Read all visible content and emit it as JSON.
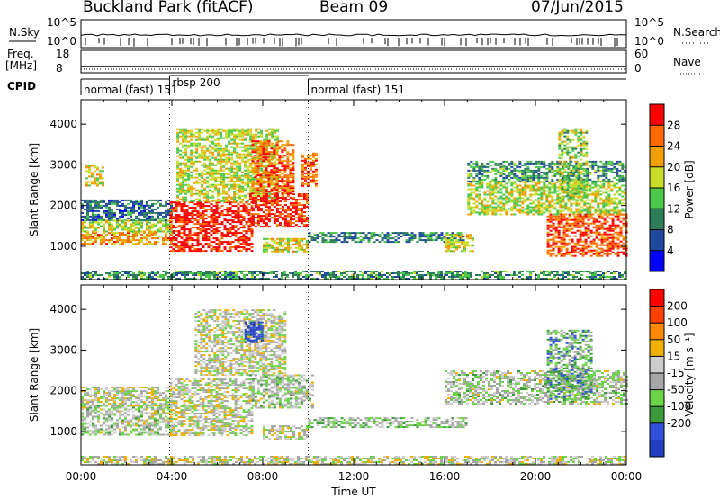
{
  "header": {
    "station": "Buckland Park (fitACF)",
    "beam": "Beam 09",
    "date": "07/Jun/2015"
  },
  "status_panels": {
    "nsky_label": "N.Sky",
    "nsky_ticks": [
      "10^5",
      "10^0"
    ],
    "nsearch_label": "N.Search",
    "nsearch_ticks": [
      "10^5",
      "10^0"
    ],
    "freq_label": "Freq.",
    "freq_unit": "[MHz]",
    "freq_ticks": [
      "18",
      "8"
    ],
    "nave_label": "Nave",
    "nave_ticks": [
      "60",
      "0"
    ],
    "cpid_label": "CPID",
    "cpid_segments": [
      {
        "label": "normal (fast) 151",
        "start": 0.0,
        "end": 3.9
      },
      {
        "label": "rbsp 200",
        "start": 3.9,
        "end": 10.0
      },
      {
        "label": "normal (fast) 151",
        "start": 10.0,
        "end": 24.0
      }
    ]
  },
  "chart_data": [
    {
      "type": "heatmap",
      "name": "Power",
      "xlabel": "",
      "ylabel": "Slant Range [km]",
      "xlim": [
        0,
        24
      ],
      "ylim": [
        180,
        4600
      ],
      "yticks": [
        1000,
        2000,
        3000,
        4000
      ],
      "colorbar_label": "Power [dB]",
      "colorbar_ticks": [
        "4",
        "8",
        "12",
        "16",
        "20",
        "24",
        "28"
      ],
      "colorbar_colors": [
        "#0000ff",
        "#1e4a9e",
        "#2d7d5a",
        "#4bc84b",
        "#c8dc28",
        "#f0a000",
        "#ff6a00",
        "#ff0000"
      ],
      "regions": [
        {
          "t0": 0.0,
          "t1": 4.0,
          "r0": 1050,
          "r1": 1350,
          "level": 0.72
        },
        {
          "t0": 0.0,
          "t1": 4.0,
          "r0": 1350,
          "r1": 1650,
          "level": 0.55
        },
        {
          "t0": 0.0,
          "t1": 4.0,
          "r0": 1650,
          "r1": 2150,
          "level": 0.25
        },
        {
          "t0": 0.2,
          "t1": 1.0,
          "r0": 2500,
          "r1": 3000,
          "level": 0.6
        },
        {
          "t0": 3.9,
          "t1": 7.5,
          "r0": 900,
          "r1": 2100,
          "level": 0.95
        },
        {
          "t0": 4.2,
          "t1": 8.6,
          "r0": 2100,
          "r1": 3900,
          "level": 0.55
        },
        {
          "t0": 7.4,
          "t1": 10.0,
          "r0": 1500,
          "r1": 2300,
          "level": 0.9
        },
        {
          "t0": 7.5,
          "t1": 9.3,
          "r0": 2300,
          "r1": 3600,
          "level": 0.8
        },
        {
          "t0": 8.0,
          "t1": 10.0,
          "r0": 850,
          "r1": 1200,
          "level": 0.6
        },
        {
          "t0": 9.7,
          "t1": 10.3,
          "r0": 2500,
          "r1": 3300,
          "level": 0.8
        },
        {
          "t0": 10.0,
          "t1": 16.8,
          "r0": 1100,
          "r1": 1350,
          "level": 0.3
        },
        {
          "t0": 16.0,
          "t1": 17.3,
          "r0": 900,
          "r1": 1300,
          "level": 0.6
        },
        {
          "t0": 17.0,
          "t1": 24.0,
          "r0": 1800,
          "r1": 2600,
          "level": 0.55
        },
        {
          "t0": 17.0,
          "t1": 24.0,
          "r0": 2600,
          "r1": 3100,
          "level": 0.35
        },
        {
          "t0": 20.5,
          "t1": 24.0,
          "r0": 750,
          "r1": 1800,
          "level": 0.85
        },
        {
          "t0": 21.0,
          "t1": 22.3,
          "r0": 2200,
          "r1": 3900,
          "level": 0.5
        },
        {
          "t0": 0.0,
          "t1": 24.0,
          "r0": 180,
          "r1": 400,
          "level": 0.35
        }
      ]
    },
    {
      "type": "heatmap",
      "name": "Velocity",
      "xlabel": "Time UT",
      "ylabel": "Slant Range [km]",
      "xlim": [
        0,
        24
      ],
      "ylim": [
        180,
        4600
      ],
      "xticks": [
        "00:00",
        "04:00",
        "08:00",
        "12:00",
        "16:00",
        "20:00",
        "00:00"
      ],
      "yticks": [
        1000,
        2000,
        3000,
        4000
      ],
      "colorbar_label": "Velocity [m s⁻¹]",
      "colorbar_ticks": [
        "200",
        "100",
        "50",
        "15",
        "-15",
        "-50",
        "-100",
        "-200"
      ],
      "colorbar_colors": [
        "#2040c0",
        "#3050d8",
        "#3c9a3c",
        "#6cd44a",
        "#a6a6a6",
        "#cccccc",
        "#f0b000",
        "#ff8a00",
        "#ff4000",
        "#ff0000"
      ],
      "regions": [
        {
          "t0": 0.0,
          "t1": 4.0,
          "r0": 900,
          "r1": 1650,
          "level": 0.45
        },
        {
          "t0": 0.0,
          "t1": 4.0,
          "r0": 1650,
          "r1": 2100,
          "level": 0.5
        },
        {
          "t0": 3.9,
          "t1": 7.5,
          "r0": 900,
          "r1": 2300,
          "level": 0.5
        },
        {
          "t0": 5.0,
          "t1": 9.0,
          "r0": 2400,
          "r1": 4000,
          "level": 0.5
        },
        {
          "t0": 7.2,
          "t1": 8.0,
          "r0": 3200,
          "r1": 3700,
          "level": 0.05
        },
        {
          "t0": 7.4,
          "t1": 10.2,
          "r0": 1600,
          "r1": 2400,
          "level": 0.45
        },
        {
          "t0": 8.0,
          "t1": 10.0,
          "r0": 800,
          "r1": 1150,
          "level": 0.5
        },
        {
          "t0": 10.0,
          "t1": 17.0,
          "r0": 1100,
          "r1": 1350,
          "level": 0.42
        },
        {
          "t0": 16.0,
          "t1": 24.0,
          "r0": 1700,
          "r1": 2500,
          "level": 0.45
        },
        {
          "t0": 20.5,
          "t1": 22.5,
          "r0": 1800,
          "r1": 3500,
          "level": 0.3
        },
        {
          "t0": 0.0,
          "t1": 24.0,
          "r0": 180,
          "r1": 400,
          "level": 0.5
        }
      ]
    }
  ]
}
